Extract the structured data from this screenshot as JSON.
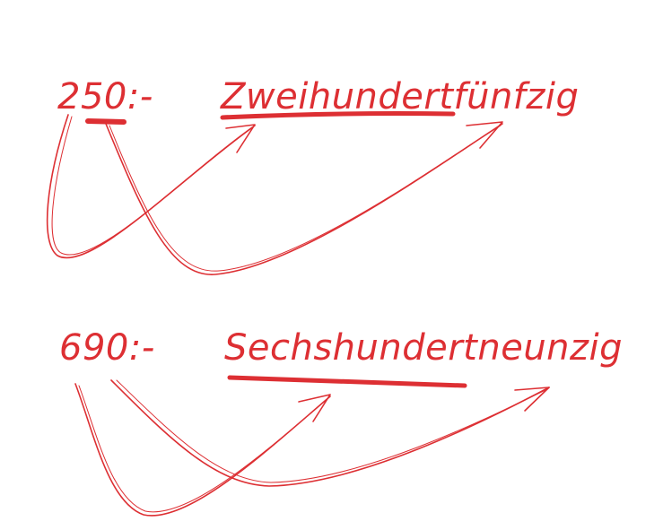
{
  "colors": {
    "ink": "#dd2f33",
    "background": "#ffffff"
  },
  "examples": [
    {
      "number": "250:-",
      "word": "Zweihundertfünfzig"
    },
    {
      "number": "690:-",
      "word": "Sechshundertneunzig"
    }
  ]
}
